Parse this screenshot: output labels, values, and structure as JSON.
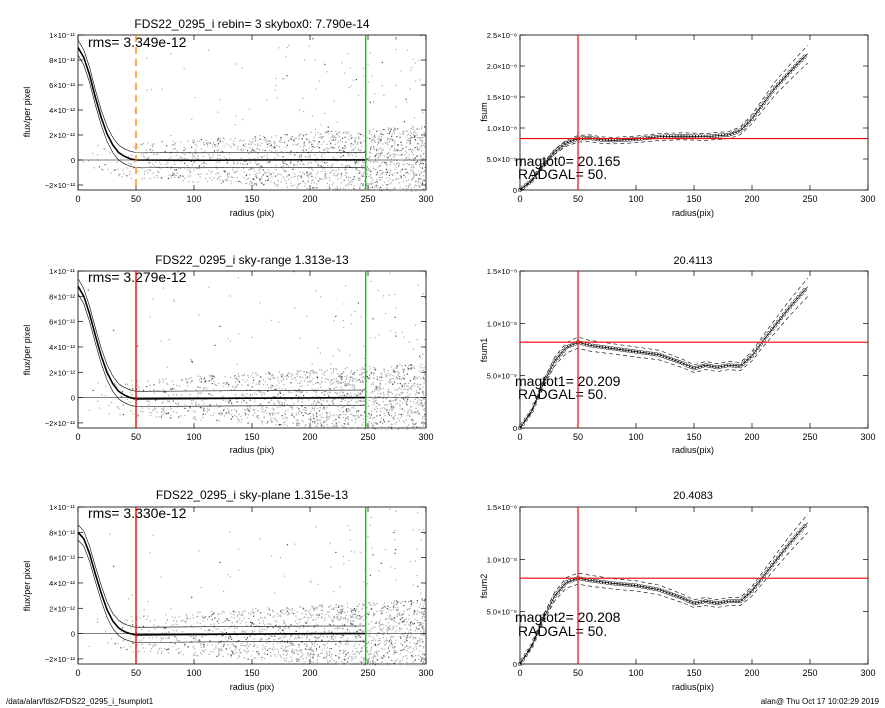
{
  "footer": {
    "path": "/data/alan/fds2/FDS22_0295_i_fsumplot1",
    "stamp": "alan@  Thu Oct 17 10:02:29 2019"
  },
  "chart_data": [
    {
      "type": "scatter",
      "title": "FDS22_0295_i rebin= 3    skybox0:  7.790e-14",
      "annotation": "rms= 3.349e-12",
      "xlabel": "radius (pix)",
      "ylabel": "flux/per pixel",
      "xlim": [
        0,
        300
      ],
      "ylim": [
        -2.4e-12,
        1e-11
      ],
      "xticks": [
        0,
        50,
        100,
        150,
        200,
        250,
        300
      ],
      "yticks": [
        {
          "v": 1e-11,
          "label": "1×10⁻¹¹"
        },
        {
          "v": 8e-12,
          "label": "8×10⁻¹²"
        },
        {
          "v": 6e-12,
          "label": "6×10⁻¹²"
        },
        {
          "v": 4e-12,
          "label": "4×10⁻¹²"
        },
        {
          "v": 2e-12,
          "label": "2×10⁻¹²"
        },
        {
          "v": 0,
          "label": "0"
        },
        {
          "v": -2e-12,
          "label": "−2×10⁻¹²"
        }
      ],
      "markers": [
        {
          "x": 50,
          "color": "#ff8c00",
          "style": "dashed"
        },
        {
          "x": 248,
          "color": "#00cc00",
          "style": "solid"
        }
      ],
      "profile": [
        [
          0,
          9e-12
        ],
        [
          5,
          8.2e-12
        ],
        [
          10,
          6.8e-12
        ],
        [
          15,
          5e-12
        ],
        [
          20,
          3.4e-12
        ],
        [
          25,
          2.1e-12
        ],
        [
          30,
          1.2e-12
        ],
        [
          35,
          6e-13
        ],
        [
          40,
          3e-13
        ],
        [
          45,
          1e-13
        ],
        [
          50,
          0
        ],
        [
          100,
          -2e-14
        ],
        [
          150,
          0
        ],
        [
          200,
          2e-14
        ],
        [
          248,
          1e-14
        ]
      ]
    },
    {
      "type": "line",
      "title": "",
      "annotation_1": "magtot0=  20.165",
      "annotation_2": "RADGAL=     50.",
      "xlabel": "radius(pix)",
      "ylabel": "fsum",
      "xlim": [
        0,
        300
      ],
      "ylim": [
        0,
        2.5e-08
      ],
      "xticks": [
        0,
        50,
        100,
        150,
        200,
        250,
        300
      ],
      "yticks": [
        {
          "v": 0,
          "label": "0"
        },
        {
          "v": 5e-09,
          "label": "5.0×10⁻⁹"
        },
        {
          "v": 1e-08,
          "label": "1.0×10⁻⁸"
        },
        {
          "v": 1.5e-08,
          "label": "1.5×10⁻⁸"
        },
        {
          "v": 2e-08,
          "label": "2.0×10⁻⁸"
        },
        {
          "v": 2.5e-08,
          "label": "2.5×10⁻⁸"
        }
      ],
      "hline": 8.3e-09,
      "vline": 50,
      "series": [
        {
          "values": [
            [
              0,
              0
            ],
            [
              10,
              1.5e-09
            ],
            [
              20,
              4e-09
            ],
            [
              30,
              6.2e-09
            ],
            [
              40,
              7.6e-09
            ],
            [
              50,
              8.3e-09
            ],
            [
              60,
              8.4e-09
            ],
            [
              70,
              8.1e-09
            ],
            [
              80,
              8e-09
            ],
            [
              100,
              8.2e-09
            ],
            [
              120,
              8.6e-09
            ],
            [
              140,
              8.7e-09
            ],
            [
              160,
              8.6e-09
            ],
            [
              180,
              8.9e-09
            ],
            [
              190,
              9.6e-09
            ],
            [
              200,
              1.15e-08
            ],
            [
              210,
              1.4e-08
            ],
            [
              220,
              1.65e-08
            ],
            [
              230,
              1.85e-08
            ],
            [
              240,
              2.05e-08
            ],
            [
              248,
              2.2e-08
            ]
          ]
        }
      ]
    },
    {
      "type": "scatter",
      "title": "FDS22_0295_i sky-range  1.313e-13",
      "annotation": "rms= 3.279e-12",
      "xlabel": "radius (pix)",
      "ylabel": "flux/per pixel",
      "xlim": [
        0,
        300
      ],
      "ylim": [
        -2.4e-12,
        1e-11
      ],
      "xticks": [
        0,
        50,
        100,
        150,
        200,
        250,
        300
      ],
      "yticks": [
        {
          "v": 1e-11,
          "label": "1×10⁻¹¹"
        },
        {
          "v": 8e-12,
          "label": "8×10⁻¹²"
        },
        {
          "v": 6e-12,
          "label": "6×10⁻¹²"
        },
        {
          "v": 4e-12,
          "label": "4×10⁻¹²"
        },
        {
          "v": 2e-12,
          "label": "2×10⁻¹²"
        },
        {
          "v": 0,
          "label": "0"
        },
        {
          "v": -2e-12,
          "label": "−2×10⁻¹²"
        }
      ],
      "markers": [
        {
          "x": 50,
          "color": "#ff0000",
          "style": "solid"
        },
        {
          "x": 248,
          "color": "#00cc00",
          "style": "solid"
        }
      ],
      "profile": [
        [
          0,
          8.8e-12
        ],
        [
          5,
          8e-12
        ],
        [
          10,
          6.6e-12
        ],
        [
          15,
          4.9e-12
        ],
        [
          20,
          3.3e-12
        ],
        [
          25,
          2e-12
        ],
        [
          30,
          1.1e-12
        ],
        [
          35,
          5e-13
        ],
        [
          40,
          2e-13
        ],
        [
          45,
          0
        ],
        [
          50,
          -1e-13
        ],
        [
          100,
          -8e-14
        ],
        [
          150,
          -5e-14
        ],
        [
          200,
          -2e-14
        ],
        [
          248,
          0
        ]
      ]
    },
    {
      "type": "line",
      "title": "20.4113",
      "annotation_1": "magtot1=  20.209",
      "annotation_2": "RADGAL=     50.",
      "xlabel": "radius(pix)",
      "ylabel": "fsum1",
      "xlim": [
        0,
        300
      ],
      "ylim": [
        0,
        1.5e-08
      ],
      "xticks": [
        0,
        50,
        100,
        150,
        200,
        250,
        300
      ],
      "yticks": [
        {
          "v": 0,
          "label": "0"
        },
        {
          "v": 5e-09,
          "label": "5.0×10⁻⁹"
        },
        {
          "v": 1e-08,
          "label": "1.0×10⁻⁸"
        },
        {
          "v": 1.5e-08,
          "label": "1.5×10⁻⁸"
        }
      ],
      "hline": 8.2e-09,
      "vline": 50,
      "series": [
        {
          "values": [
            [
              0,
              0
            ],
            [
              10,
              1.6e-09
            ],
            [
              20,
              4.2e-09
            ],
            [
              30,
              6.4e-09
            ],
            [
              40,
              7.7e-09
            ],
            [
              50,
              8.2e-09
            ],
            [
              60,
              7.9e-09
            ],
            [
              80,
              7.6e-09
            ],
            [
              100,
              7.3e-09
            ],
            [
              120,
              7e-09
            ],
            [
              140,
              6.2e-09
            ],
            [
              150,
              5.7e-09
            ],
            [
              160,
              6e-09
            ],
            [
              170,
              5.8e-09
            ],
            [
              180,
              6e-09
            ],
            [
              190,
              5.9e-09
            ],
            [
              200,
              6.9e-09
            ],
            [
              210,
              8.4e-09
            ],
            [
              220,
              9.8e-09
            ],
            [
              230,
              1.12e-08
            ],
            [
              240,
              1.25e-08
            ],
            [
              248,
              1.35e-08
            ]
          ]
        }
      ]
    },
    {
      "type": "scatter",
      "title": "FDS22_0295_i sky-plane  1.315e-13",
      "annotation": "rms= 3.330e-12",
      "xlabel": "radius (pix)",
      "ylabel": "flux/per pixel",
      "xlim": [
        0,
        300
      ],
      "ylim": [
        -2.4e-12,
        1e-11
      ],
      "xticks": [
        0,
        50,
        100,
        150,
        200,
        250,
        300
      ],
      "yticks": [
        {
          "v": 1e-11,
          "label": "1×10⁻¹¹"
        },
        {
          "v": 8e-12,
          "label": "8×10⁻¹²"
        },
        {
          "v": 6e-12,
          "label": "6×10⁻¹²"
        },
        {
          "v": 4e-12,
          "label": "4×10⁻¹²"
        },
        {
          "v": 2e-12,
          "label": "2×10⁻¹²"
        },
        {
          "v": 0,
          "label": "0"
        },
        {
          "v": -2e-12,
          "label": "−2×10⁻¹²"
        }
      ],
      "markers": [
        {
          "x": 50,
          "color": "#ff0000",
          "style": "solid"
        },
        {
          "x": 248,
          "color": "#00cc00",
          "style": "solid"
        }
      ],
      "profile": [
        [
          0,
          8e-12
        ],
        [
          5,
          7.5e-12
        ],
        [
          10,
          6.3e-12
        ],
        [
          15,
          4.7e-12
        ],
        [
          20,
          3.2e-12
        ],
        [
          25,
          1.9e-12
        ],
        [
          30,
          1e-12
        ],
        [
          35,
          4.5e-13
        ],
        [
          40,
          1.5e-13
        ],
        [
          45,
          0
        ],
        [
          50,
          -1e-13
        ],
        [
          100,
          -6e-14
        ],
        [
          150,
          -4e-14
        ],
        [
          200,
          -1e-14
        ],
        [
          248,
          0
        ]
      ]
    },
    {
      "type": "line",
      "title": "20.4083",
      "annotation_1": "magtot2=  20.208",
      "annotation_2": "RADGAL=     50.",
      "xlabel": "radius(pix)",
      "ylabel": "fsum2",
      "xlim": [
        0,
        300
      ],
      "ylim": [
        0,
        1.5e-08
      ],
      "xticks": [
        0,
        50,
        100,
        150,
        200,
        250,
        300
      ],
      "yticks": [
        {
          "v": 0,
          "label": "0"
        },
        {
          "v": 5e-09,
          "label": "5.0×10⁻⁹"
        },
        {
          "v": 1e-08,
          "label": "1.0×10⁻⁸"
        },
        {
          "v": 1.5e-08,
          "label": "1.5×10⁻⁸"
        }
      ],
      "hline": 8.2e-09,
      "vline": 50,
      "series": [
        {
          "values": [
            [
              0,
              0
            ],
            [
              10,
              1.7e-09
            ],
            [
              20,
              4.3e-09
            ],
            [
              30,
              6.5e-09
            ],
            [
              40,
              7.8e-09
            ],
            [
              50,
              8.2e-09
            ],
            [
              60,
              8e-09
            ],
            [
              80,
              7.7e-09
            ],
            [
              100,
              7.5e-09
            ],
            [
              120,
              7.1e-09
            ],
            [
              140,
              6.3e-09
            ],
            [
              150,
              5.8e-09
            ],
            [
              160,
              6e-09
            ],
            [
              170,
              5.8e-09
            ],
            [
              180,
              6e-09
            ],
            [
              190,
              6e-09
            ],
            [
              200,
              7e-09
            ],
            [
              210,
              8.4e-09
            ],
            [
              220,
              9.8e-09
            ],
            [
              230,
              1.12e-08
            ],
            [
              240,
              1.25e-08
            ],
            [
              248,
              1.35e-08
            ]
          ]
        }
      ]
    }
  ]
}
